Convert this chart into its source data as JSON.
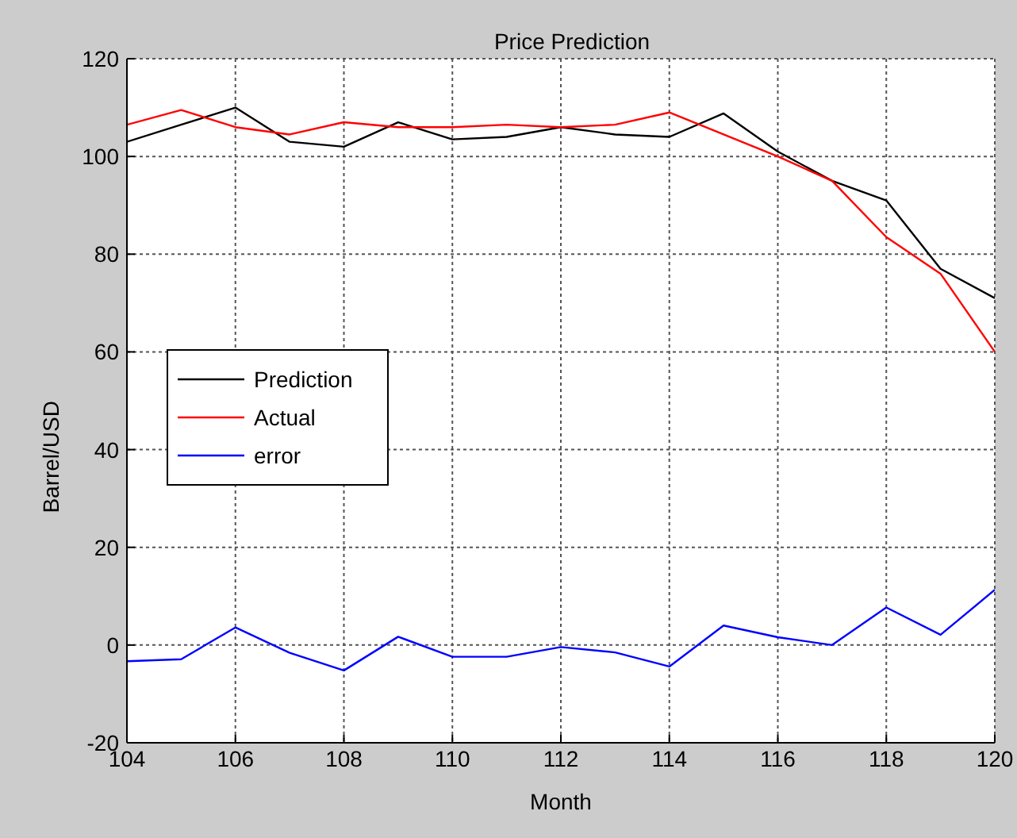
{
  "chart_data": {
    "type": "line",
    "title": "Price Prediction",
    "xlabel": "Month",
    "ylabel": "Barrel/USD",
    "x": [
      104,
      105,
      106,
      107,
      108,
      109,
      110,
      111,
      112,
      113,
      114,
      115,
      116,
      117,
      118,
      119,
      120
    ],
    "series": [
      {
        "name": "Prediction",
        "color": "#000000",
        "values": [
          103,
          106.5,
          110,
          103,
          102,
          107,
          103.5,
          104,
          106,
          104.5,
          104,
          108.8,
          101,
          95,
          91,
          77,
          71
        ]
      },
      {
        "name": "Actual",
        "color": "#ff0000",
        "values": [
          106.5,
          109.5,
          106,
          104.5,
          107,
          106,
          106,
          106.5,
          106,
          106.5,
          109,
          104.5,
          100,
          95,
          83.5,
          76,
          60
        ]
      },
      {
        "name": "error",
        "color": "#0000ff",
        "values": [
          -3.3,
          -2.9,
          3.6,
          -1.6,
          -5.2,
          1.7,
          -2.4,
          -2.4,
          -0.4,
          -1.5,
          -4.4,
          4,
          1.6,
          0,
          7.7,
          2.1,
          11.3
        ]
      }
    ],
    "xlim": [
      104,
      120
    ],
    "xticks": [
      104,
      106,
      108,
      110,
      112,
      114,
      116,
      118,
      120
    ],
    "ylim": [
      -20,
      120
    ],
    "yticks": [
      -20,
      0,
      20,
      40,
      60,
      80,
      100,
      120
    ],
    "grid": true,
    "legend": "left",
    "marker": "none",
    "line_style": "solid"
  }
}
